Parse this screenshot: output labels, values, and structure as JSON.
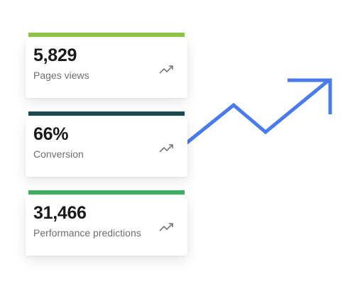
{
  "colors": {
    "trend_arrow": "#4a7bea",
    "card_1_accent": "#8fc143",
    "card_2_accent": "#1a4a4c",
    "card_3_accent": "#3fae62",
    "value_text": "#1a1a1a",
    "label_text": "#6e6e6e"
  },
  "stats": [
    {
      "value": "5,829",
      "label": "Pages views",
      "icon": "trending-up-icon"
    },
    {
      "value": "66%",
      "label": "Conversion",
      "icon": "trending-up-icon"
    },
    {
      "value": "31,466",
      "label": "Performance predictions",
      "icon": "trending-up-icon"
    }
  ]
}
